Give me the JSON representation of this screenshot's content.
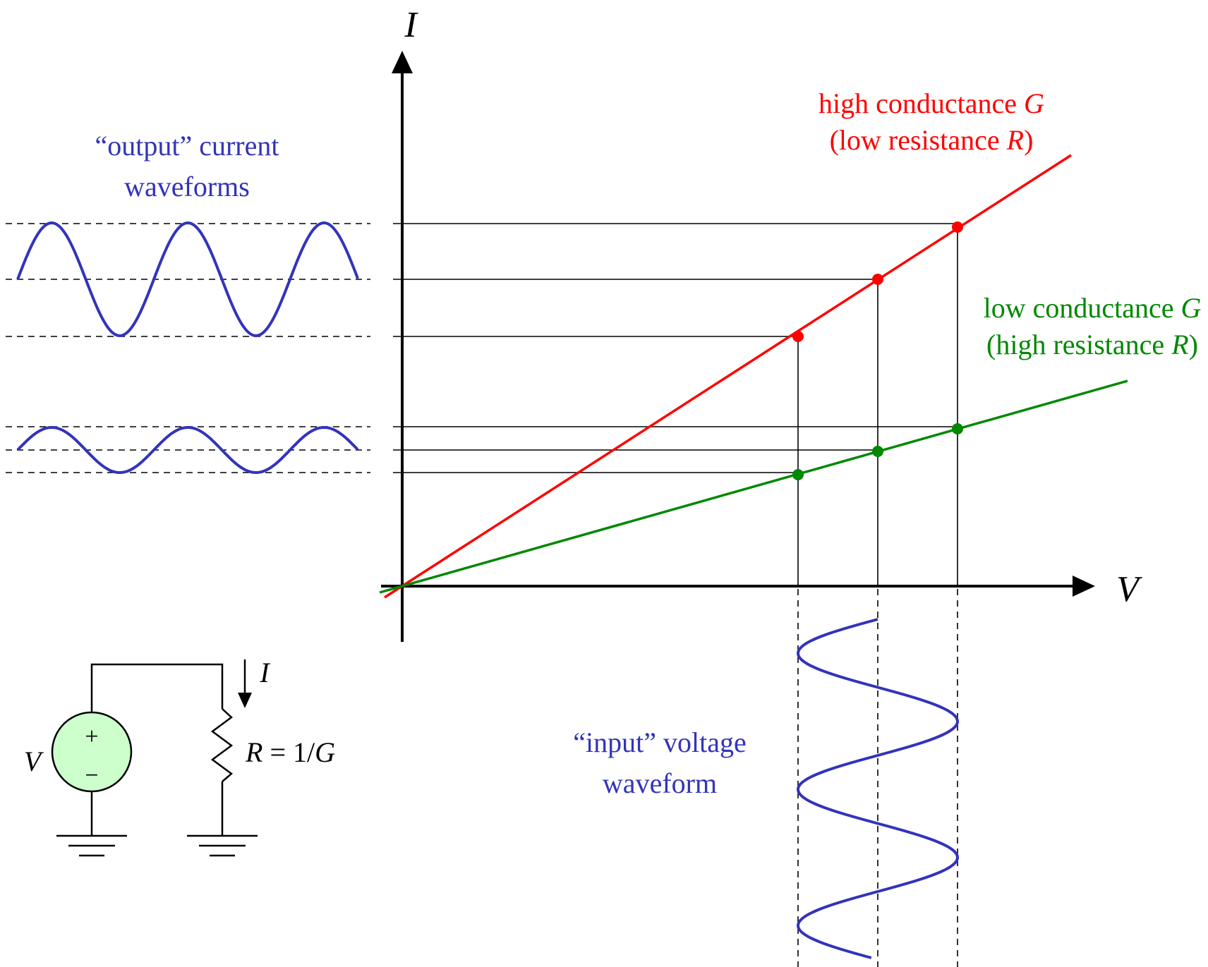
{
  "axes": {
    "x_label": "V",
    "y_label": "I"
  },
  "labels": {
    "output_line1": "“output” current",
    "output_line2": "waveforms",
    "input_line1": "“input” voltage",
    "input_line2": "waveform",
    "high_line1_pre": "high conductance ",
    "high_line1_var": "G",
    "high_line2_pre": "(low resistance ",
    "high_line2_var": "R",
    "high_line2_post": ")",
    "low_line1_pre": "low conductance ",
    "low_line1_var": "G",
    "low_line2_pre": "(high resistance ",
    "low_line2_var": "R",
    "low_line2_post": ")"
  },
  "circuit": {
    "source_label": "V",
    "current_label": "I",
    "plus": "+",
    "minus": "−",
    "resistor_label_var": "R",
    "resistor_label_eq": " = 1/",
    "resistor_label_g": "G"
  },
  "colors": {
    "high_conductance": "#ff0000",
    "low_conductance": "#008800",
    "waveform": "#3333bb",
    "source_fill": "#ccffcc",
    "axis": "#000000"
  }
}
